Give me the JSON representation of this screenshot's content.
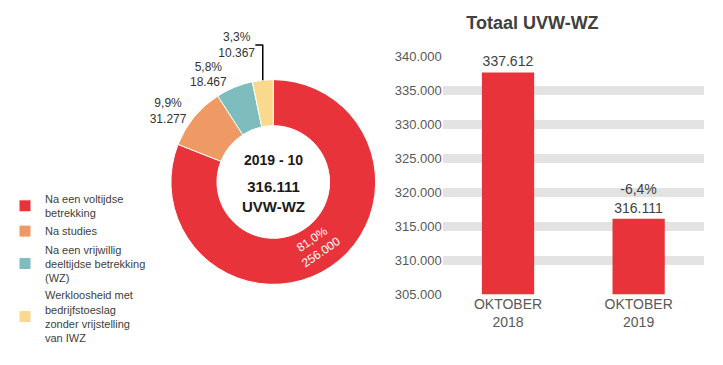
{
  "chart_data": [
    {
      "type": "pie",
      "categories": [
        "Na een voltijdse betrekking",
        "Na studies",
        "Na een vrijwillig deeltijdse betrekking (WZ)",
        "Werkloosheid met bedrijfstoeslag zonder vrijstelling van IWZ"
      ],
      "values": [
        256000,
        31277,
        18467,
        10367
      ],
      "value_labels": [
        "256.000",
        "31.277",
        "18.467",
        "10.367"
      ],
      "percentages": [
        81.0,
        9.9,
        5.8,
        3.3
      ],
      "percentage_labels": [
        "81,0%",
        "9,9%",
        "5,8%",
        "3,3%"
      ],
      "colors": [
        "#e8333a",
        "#ef9a64",
        "#7dbdbd",
        "#f9d98b"
      ],
      "data_labels": true,
      "legend": "left",
      "center_text": [
        "2019 - 10",
        "316.111",
        "UVW-WZ"
      ]
    },
    {
      "type": "bar",
      "title": "Totaal UVW-WZ",
      "categories": [
        "OKTOBER 2018",
        "OKTOBER 2019"
      ],
      "values": [
        337612,
        316111
      ],
      "value_labels": [
        "337.612",
        "316.111"
      ],
      "change": -6.4,
      "change_label": "-6,4%",
      "color": "#e8333a",
      "ylim": [
        305000,
        340000
      ],
      "yticks": [
        {
          "value": 305000,
          "label": "305.000"
        },
        {
          "value": 310000,
          "label": "310.000"
        },
        {
          "value": 315000,
          "label": "315.000"
        },
        {
          "value": 320000,
          "label": "320.000"
        },
        {
          "value": 325000,
          "label": "325.000"
        },
        {
          "value": 330000,
          "label": "330.000"
        },
        {
          "value": 335000,
          "label": "335.000"
        },
        {
          "value": 340000,
          "label": "340.000"
        }
      ],
      "grid": true,
      "data_labels": true
    }
  ]
}
